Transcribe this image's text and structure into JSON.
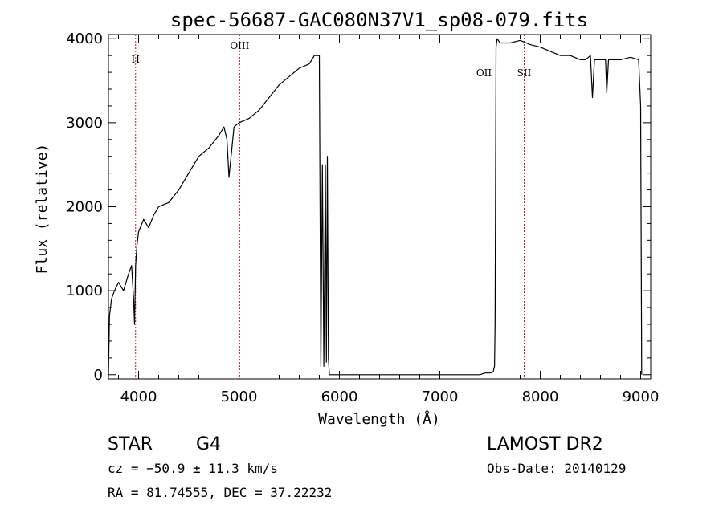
{
  "chart_data": {
    "type": "line",
    "title": "spec-56687-GAC080N37V1_sp08-079.fits",
    "xlabel": "Wavelength (Å)",
    "ylabel": "Flux (relative)",
    "xlim": [
      3700,
      9100
    ],
    "ylim": [
      -50,
      4050
    ],
    "x_ticks": [
      4000,
      5000,
      6000,
      7000,
      8000,
      9000
    ],
    "x_tick_labels": [
      "4000",
      "5000",
      "6000",
      "7000",
      "8000",
      "9000"
    ],
    "y_ticks": [
      0,
      1000,
      2000,
      3000,
      4000
    ],
    "y_tick_labels": [
      "0",
      "1000",
      "2000",
      "3000",
      "4000"
    ],
    "grid": false,
    "lines": [
      {
        "name": "H",
        "x": 3970
      },
      {
        "name": "OIII",
        "x": 5007
      },
      {
        "name": "OII",
        "x": 7440
      },
      {
        "name": "SII",
        "x": 7840
      }
    ],
    "series": [
      {
        "x": [
          3700,
          3710,
          3730,
          3760,
          3800,
          3850,
          3900,
          3930,
          3950,
          3960,
          3970,
          3985,
          4000,
          4050,
          4100,
          4150,
          4200,
          4300,
          4400,
          4500,
          4600,
          4700,
          4800,
          4850,
          4880,
          4900,
          4950,
          5000,
          5100,
          5200,
          5300,
          5400,
          5500,
          5600,
          5700,
          5750,
          5800,
          5815,
          5830,
          5845,
          5860,
          5870,
          5880,
          5890,
          5900,
          5920,
          5950,
          6000,
          6500,
          7000,
          7200,
          7300,
          7400,
          7450,
          7500,
          7530,
          7545,
          7550,
          7560,
          7570,
          7600,
          7700,
          7800,
          7900,
          8000,
          8100,
          8200,
          8300,
          8400,
          8450,
          8500,
          8520,
          8540,
          8560,
          8600,
          8650,
          8662,
          8680,
          8700,
          8800,
          8900,
          8980,
          9000,
          9010
        ],
        "y": [
          0,
          700,
          900,
          1000,
          1100,
          1000,
          1200,
          1300,
          900,
          600,
          1300,
          1550,
          1700,
          1850,
          1750,
          1900,
          2000,
          2050,
          2200,
          2400,
          2600,
          2700,
          2850,
          2950,
          2800,
          2350,
          2950,
          3000,
          3050,
          3150,
          3300,
          3450,
          3550,
          3650,
          3700,
          3800,
          3800,
          100,
          2500,
          100,
          2500,
          150,
          2600,
          200,
          0,
          0,
          0,
          0,
          0,
          0,
          0,
          0,
          0,
          20,
          20,
          30,
          100,
          600,
          3900,
          4000,
          3950,
          3950,
          3980,
          3930,
          3900,
          3850,
          3800,
          3800,
          3750,
          3750,
          3800,
          3300,
          3750,
          3750,
          3750,
          3750,
          3350,
          3750,
          3750,
          3750,
          3780,
          3750,
          3200,
          0
        ]
      }
    ]
  },
  "footer": {
    "object_class": "STAR",
    "subclass": "G4",
    "survey": "LAMOST DR2",
    "cz": "cz = −50.9 ± 11.3 km/s",
    "obs_date": "Obs-Date: 20140129",
    "coords": "RA =  81.74555, DEC =  37.22232"
  }
}
